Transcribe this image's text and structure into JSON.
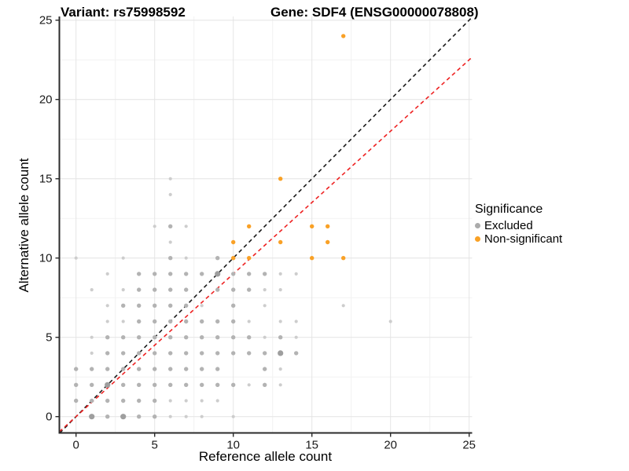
{
  "titles": {
    "variant": "Variant: rs75998592",
    "gene": "Gene: SDF4 (ENSG00000078808)"
  },
  "legend": {
    "title": "Significance",
    "items": [
      {
        "label": "Excluded",
        "color": "#ABABAB"
      },
      {
        "label": "Non-significant",
        "color": "#F9A126"
      }
    ]
  },
  "chart_data": {
    "type": "scatter",
    "title": "Variant: rs75998592 | Gene: SDF4 (ENSG00000078808)",
    "xlabel": "Reference allele count",
    "ylabel": "Alternative allele count",
    "x_ticks": [
      0,
      5,
      10,
      15,
      20,
      25
    ],
    "y_ticks": [
      0,
      5,
      10,
      15,
      20,
      25
    ],
    "xlim": [
      -1.06,
      25.2
    ],
    "ylim": [
      -1.04,
      25.3
    ],
    "grid": {
      "major": true,
      "minor": true
    },
    "legend_position": "right",
    "series": [
      {
        "name": "Excluded",
        "size_colors": {
          "1": "#CDCDCD",
          "2": "#B3B3B3",
          "3": "#9E9E9E"
        },
        "points": [
          [
            1,
            0,
            3
          ],
          [
            2,
            0,
            2
          ],
          [
            3,
            0,
            3
          ],
          [
            4,
            0,
            2
          ],
          [
            5,
            0,
            2
          ],
          [
            6,
            0,
            1
          ],
          [
            7,
            0,
            1
          ],
          [
            8,
            0,
            1
          ],
          [
            10,
            0,
            1
          ],
          [
            0,
            1,
            2
          ],
          [
            1,
            1,
            2
          ],
          [
            2,
            1,
            2
          ],
          [
            3,
            1,
            2
          ],
          [
            4,
            1,
            2
          ],
          [
            5,
            1,
            2
          ],
          [
            6,
            1,
            1
          ],
          [
            7,
            1,
            1
          ],
          [
            8,
            1,
            1
          ],
          [
            9,
            1,
            1
          ],
          [
            0,
            2,
            2
          ],
          [
            1,
            2,
            2
          ],
          [
            2,
            2,
            3
          ],
          [
            3,
            2,
            2
          ],
          [
            4,
            2,
            2
          ],
          [
            5,
            2,
            2
          ],
          [
            6,
            2,
            2
          ],
          [
            7,
            2,
            2
          ],
          [
            8,
            2,
            2
          ],
          [
            9,
            2,
            2
          ],
          [
            10,
            2,
            2
          ],
          [
            11,
            2,
            1
          ],
          [
            12,
            2,
            2
          ],
          [
            13,
            2,
            1
          ],
          [
            0,
            3,
            2
          ],
          [
            1,
            3,
            2
          ],
          [
            2,
            3,
            2
          ],
          [
            3,
            3,
            2
          ],
          [
            4,
            3,
            2
          ],
          [
            5,
            3,
            2
          ],
          [
            6,
            3,
            2
          ],
          [
            7,
            3,
            2
          ],
          [
            8,
            3,
            2
          ],
          [
            9,
            3,
            2
          ],
          [
            12,
            3,
            2
          ],
          [
            13,
            3,
            1
          ],
          [
            1,
            4,
            1
          ],
          [
            2,
            4,
            2
          ],
          [
            3,
            4,
            2
          ],
          [
            4,
            4,
            2
          ],
          [
            5,
            4,
            2
          ],
          [
            6,
            4,
            2
          ],
          [
            7,
            4,
            2
          ],
          [
            8,
            4,
            2
          ],
          [
            9,
            4,
            2
          ],
          [
            10,
            4,
            2
          ],
          [
            11,
            4,
            2
          ],
          [
            12,
            4,
            2
          ],
          [
            13,
            4,
            3
          ],
          [
            14,
            4,
            2
          ],
          [
            1,
            5,
            1
          ],
          [
            2,
            5,
            2
          ],
          [
            3,
            5,
            2
          ],
          [
            4,
            5,
            2
          ],
          [
            5,
            5,
            2
          ],
          [
            6,
            5,
            2
          ],
          [
            7,
            5,
            2
          ],
          [
            8,
            5,
            2
          ],
          [
            9,
            5,
            2
          ],
          [
            10,
            5,
            2
          ],
          [
            11,
            5,
            2
          ],
          [
            12,
            5,
            1
          ],
          [
            13,
            5,
            2
          ],
          [
            14,
            5,
            1
          ],
          [
            2,
            6,
            1
          ],
          [
            3,
            6,
            1
          ],
          [
            4,
            6,
            2
          ],
          [
            5,
            6,
            2
          ],
          [
            6,
            6,
            2
          ],
          [
            7,
            6,
            2
          ],
          [
            8,
            6,
            2
          ],
          [
            9,
            6,
            2
          ],
          [
            10,
            6,
            2
          ],
          [
            11,
            6,
            1
          ],
          [
            13,
            6,
            1
          ],
          [
            14,
            6,
            1
          ],
          [
            20,
            6,
            1
          ],
          [
            2,
            7,
            1
          ],
          [
            3,
            7,
            2
          ],
          [
            4,
            7,
            2
          ],
          [
            5,
            7,
            2
          ],
          [
            6,
            7,
            2
          ],
          [
            7,
            7,
            2
          ],
          [
            8,
            7,
            1
          ],
          [
            10,
            7,
            2
          ],
          [
            12,
            7,
            1
          ],
          [
            17,
            7,
            1
          ],
          [
            1,
            8,
            1
          ],
          [
            3,
            8,
            1
          ],
          [
            4,
            8,
            2
          ],
          [
            5,
            8,
            2
          ],
          [
            6,
            8,
            2
          ],
          [
            7,
            8,
            2
          ],
          [
            9,
            8,
            2
          ],
          [
            10,
            8,
            2
          ],
          [
            11,
            8,
            2
          ],
          [
            12,
            8,
            1
          ],
          [
            13,
            8,
            1
          ],
          [
            2,
            9,
            1
          ],
          [
            4,
            9,
            2
          ],
          [
            5,
            9,
            2
          ],
          [
            6,
            9,
            2
          ],
          [
            7,
            9,
            2
          ],
          [
            8,
            9,
            2
          ],
          [
            9,
            9,
            3
          ],
          [
            10,
            9,
            2
          ],
          [
            11,
            9,
            2
          ],
          [
            12,
            9,
            2
          ],
          [
            13,
            9,
            1
          ],
          [
            14,
            9,
            1
          ],
          [
            0,
            10,
            1
          ],
          [
            3,
            10,
            1
          ],
          [
            6,
            10,
            2
          ],
          [
            7,
            10,
            1
          ],
          [
            9,
            10,
            2
          ],
          [
            6,
            11,
            1
          ],
          [
            5,
            12,
            1
          ],
          [
            6,
            12,
            2
          ],
          [
            7,
            12,
            1
          ],
          [
            6,
            14,
            1
          ],
          [
            6,
            15,
            1
          ]
        ]
      },
      {
        "name": "Non-significant",
        "size_colors": {
          "1": "#F9A126",
          "2": "#F9A126",
          "3": "#F9A126"
        },
        "points": [
          [
            10,
            10,
            2
          ],
          [
            11,
            10,
            2
          ],
          [
            15,
            10,
            2
          ],
          [
            17,
            10,
            2
          ],
          [
            10,
            11,
            2
          ],
          [
            13,
            11,
            2
          ],
          [
            16,
            11,
            2
          ],
          [
            11,
            12,
            2
          ],
          [
            15,
            12,
            2
          ],
          [
            16,
            12,
            2
          ],
          [
            13,
            15,
            2
          ],
          [
            17,
            24,
            2
          ]
        ]
      }
    ],
    "lines": [
      {
        "name": "identity",
        "slope": 1,
        "intercept": 0,
        "color": "#1A1A1A",
        "dashed": true
      },
      {
        "name": "expected-ratio",
        "slope": 0.9,
        "intercept": 0,
        "color": "#EE2222",
        "dashed": true
      }
    ]
  }
}
